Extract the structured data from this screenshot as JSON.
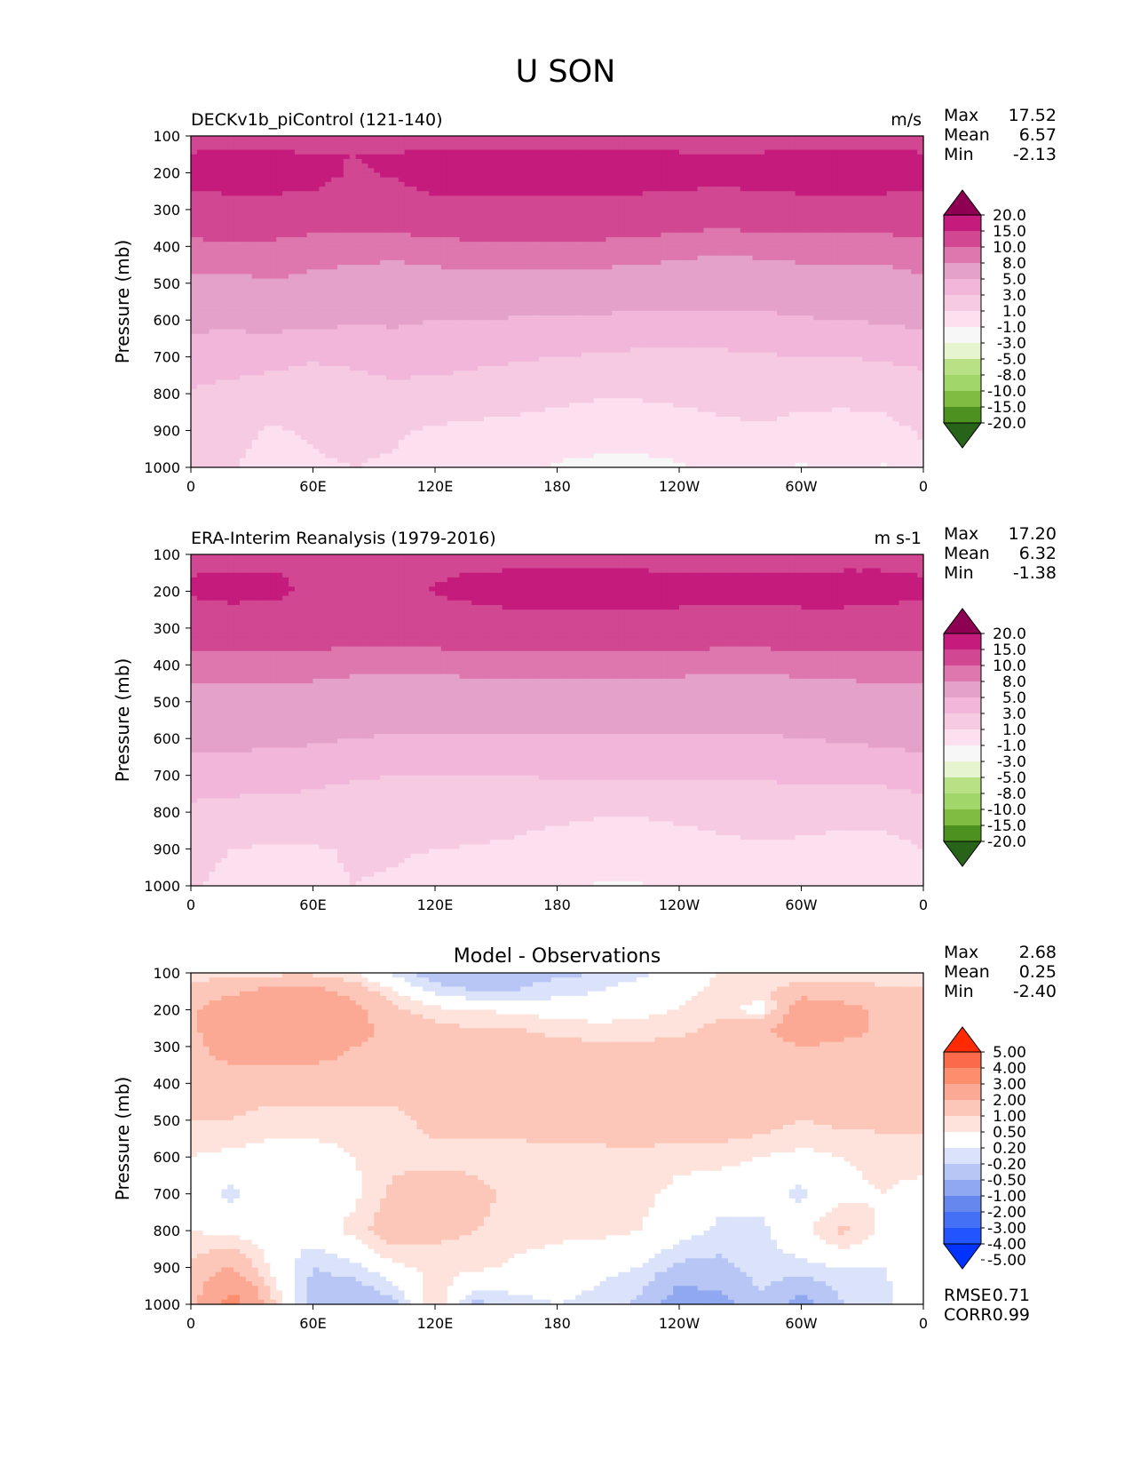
{
  "figure": {
    "title": "U SON"
  },
  "colors": {
    "full_field": [
      "#276419",
      "#4d9221",
      "#7fbc41",
      "#a1d76a",
      "#b8e186",
      "#e6f5d0",
      "#f7f7f7",
      "#fde0ef",
      "#f6cbe2",
      "#f1b6da",
      "#e4a1c9",
      "#de77ae",
      "#d14792",
      "#c51b7d",
      "#8e0152"
    ],
    "difference": [
      "#0033ff",
      "#2255ff",
      "#4470f5",
      "#6688ee",
      "#8fa8ef",
      "#b7c6f4",
      "#dbe3fb",
      "#ffffff",
      "#fee3dc",
      "#fcc7b8",
      "#fba994",
      "#fc8e6e",
      "#fb6a4a",
      "#ff2a00"
    ]
  },
  "chart_data": [
    {
      "type": "heatmap",
      "id": "model",
      "title": "DECKv1b_piControl (121-140)",
      "units": "m/s",
      "ylabel": "Pressure (mb)",
      "xlabel": "",
      "x_ticks": [
        "0",
        "60E",
        "120E",
        "180",
        "120W",
        "60W",
        "0"
      ],
      "y_ticks": [
        "100",
        "200",
        "300",
        "400",
        "500",
        "600",
        "700",
        "800",
        "900",
        "1000"
      ],
      "ylim": [
        100,
        1000
      ],
      "xlim": [
        0,
        360
      ],
      "stats": {
        "max_label": "Max",
        "max": "17.52",
        "mean_label": "Mean",
        "mean": "6.57",
        "min_label": "Min",
        "min": "-2.13"
      },
      "colorbar": {
        "levels": [
          "20.0",
          "15.0",
          "10.0",
          "8.0",
          "5.0",
          "3.0",
          "1.0",
          "-1.0",
          "-3.0",
          "-5.0",
          "-8.0",
          "-10.0",
          "-15.0",
          "-20.0"
        ],
        "extend": "both",
        "palette": "full_field"
      },
      "field": {
        "lon": [
          0,
          20,
          40,
          60,
          80,
          100,
          120,
          140,
          160,
          180,
          200,
          220,
          240,
          260,
          280,
          300,
          320,
          340,
          360
        ],
        "plev": [
          100,
          150,
          200,
          250,
          300,
          400,
          500,
          600,
          700,
          800,
          900,
          1000
        ],
        "u": [
          [
            11.0,
            10.5,
            10.0,
            9.5,
            10.0,
            10.5,
            11.0,
            12.0,
            12.0,
            12.0,
            12.0,
            12.0,
            11.5,
            11.0,
            11.0,
            11.0,
            10.5,
            10.5,
            11.0
          ],
          [
            15.5,
            16.0,
            16.0,
            15.5,
            15.0,
            15.5,
            16.0,
            16.5,
            16.5,
            16.0,
            16.0,
            16.0,
            15.5,
            15.0,
            15.5,
            16.0,
            16.0,
            16.0,
            15.5
          ],
          [
            16.5,
            17.0,
            17.0,
            16.5,
            14.5,
            15.5,
            17.0,
            17.5,
            17.5,
            17.0,
            17.0,
            17.0,
            16.5,
            16.5,
            17.0,
            17.0,
            17.0,
            17.0,
            16.5
          ],
          [
            15.0,
            15.5,
            15.5,
            15.0,
            13.5,
            14.0,
            15.5,
            16.0,
            16.0,
            15.5,
            15.5,
            15.5,
            15.0,
            14.5,
            15.0,
            15.5,
            15.5,
            15.5,
            15.0
          ],
          [
            12.0,
            12.5,
            12.5,
            12.0,
            12.0,
            12.0,
            12.5,
            13.0,
            13.0,
            12.5,
            12.5,
            12.0,
            12.0,
            11.5,
            12.0,
            12.0,
            12.0,
            12.0,
            12.0
          ],
          [
            9.5,
            9.5,
            9.5,
            9.0,
            9.0,
            8.8,
            9.2,
            9.5,
            9.5,
            9.5,
            9.5,
            9.2,
            9.0,
            8.5,
            8.8,
            9.0,
            9.0,
            9.0,
            9.5
          ],
          [
            7.5,
            7.5,
            7.8,
            7.5,
            7.0,
            6.8,
            7.0,
            7.2,
            7.2,
            7.0,
            7.0,
            6.8,
            6.5,
            6.2,
            6.5,
            6.8,
            7.0,
            7.0,
            7.5
          ],
          [
            5.5,
            5.5,
            5.8,
            5.5,
            5.3,
            5.2,
            5.0,
            5.0,
            4.8,
            4.8,
            4.6,
            4.5,
            4.5,
            4.5,
            4.5,
            4.8,
            5.0,
            5.2,
            5.5
          ],
          [
            4.0,
            3.8,
            3.5,
            3.2,
            3.5,
            4.2,
            3.8,
            3.5,
            3.2,
            3.0,
            2.8,
            2.6,
            2.5,
            2.6,
            2.8,
            3.0,
            3.0,
            3.2,
            3.5
          ],
          [
            2.8,
            2.5,
            2.2,
            2.0,
            2.0,
            2.2,
            2.2,
            2.0,
            1.8,
            1.5,
            1.2,
            1.2,
            1.4,
            1.6,
            1.8,
            1.6,
            1.5,
            1.6,
            2.0
          ],
          [
            1.8,
            1.5,
            0.8,
            1.2,
            1.4,
            1.2,
            0.8,
            0.6,
            0.4,
            0.2,
            0.0,
            0.0,
            0.2,
            0.6,
            0.8,
            0.4,
            0.3,
            0.5,
            1.2
          ],
          [
            1.0,
            1.2,
            0.2,
            0.8,
            1.0,
            0.8,
            -0.2,
            0.2,
            0.0,
            -1.2,
            -1.5,
            -1.6,
            -1.2,
            -0.2,
            0.2,
            -1.3,
            0.3,
            -1.2,
            0.5
          ]
        ]
      }
    },
    {
      "type": "heatmap",
      "id": "obs",
      "title": "ERA-Interim Reanalysis (1979-2016)",
      "units": "m s-1",
      "ylabel": "Pressure (mb)",
      "xlabel": "",
      "x_ticks": [
        "0",
        "60E",
        "120E",
        "180",
        "120W",
        "60W",
        "0"
      ],
      "y_ticks": [
        "100",
        "200",
        "300",
        "400",
        "500",
        "600",
        "700",
        "800",
        "900",
        "1000"
      ],
      "ylim": [
        100,
        1000
      ],
      "xlim": [
        0,
        360
      ],
      "stats": {
        "max_label": "Max",
        "max": "17.20",
        "mean_label": "Mean",
        "mean": "6.32",
        "min_label": "Min",
        "min": "-1.38"
      },
      "colorbar": {
        "levels": [
          "20.0",
          "15.0",
          "10.0",
          "8.0",
          "5.0",
          "3.0",
          "1.0",
          "-1.0",
          "-3.0",
          "-5.0",
          "-8.0",
          "-10.0",
          "-15.0",
          "-20.0"
        ],
        "extend": "both",
        "palette": "full_field"
      },
      "field": {
        "lon": [
          0,
          20,
          40,
          60,
          80,
          100,
          120,
          140,
          160,
          180,
          200,
          220,
          240,
          260,
          280,
          300,
          320,
          340,
          360
        ],
        "plev": [
          100,
          150,
          200,
          250,
          300,
          400,
          500,
          600,
          700,
          800,
          900,
          1000
        ],
        "u": [
          [
            12.0,
            11.5,
            11.5,
            11.0,
            11.0,
            11.0,
            11.5,
            12.0,
            12.5,
            12.0,
            12.0,
            12.0,
            11.5,
            11.5,
            11.5,
            11.5,
            11.5,
            11.5,
            12.0
          ],
          [
            14.8,
            15.5,
            15.2,
            14.0,
            13.5,
            13.8,
            14.5,
            15.2,
            15.5,
            15.5,
            15.5,
            15.5,
            15.2,
            15.0,
            15.2,
            15.4,
            15.5,
            15.5,
            14.8
          ],
          [
            15.5,
            16.5,
            16.0,
            14.2,
            13.8,
            14.2,
            15.2,
            16.2,
            16.5,
            16.6,
            16.6,
            16.6,
            16.3,
            16.0,
            16.2,
            16.4,
            16.5,
            16.4,
            15.8
          ],
          [
            14.0,
            14.2,
            14.0,
            13.5,
            13.2,
            13.2,
            13.8,
            14.5,
            15.0,
            15.2,
            15.3,
            15.2,
            14.8,
            14.5,
            14.6,
            14.8,
            14.8,
            14.5,
            14.0
          ],
          [
            12.0,
            12.0,
            12.0,
            11.8,
            11.5,
            11.5,
            11.8,
            12.0,
            12.2,
            12.2,
            12.0,
            12.0,
            12.0,
            11.8,
            11.8,
            12.0,
            12.0,
            12.0,
            12.0
          ],
          [
            9.0,
            9.0,
            9.0,
            8.8,
            8.5,
            8.5,
            8.5,
            8.8,
            8.8,
            8.8,
            8.8,
            8.8,
            8.8,
            8.5,
            8.5,
            8.8,
            8.8,
            9.0,
            9.0
          ],
          [
            7.2,
            7.2,
            7.2,
            7.0,
            6.8,
            6.6,
            6.5,
            6.5,
            6.5,
            6.5,
            6.5,
            6.5,
            6.4,
            6.2,
            6.3,
            6.5,
            6.8,
            7.0,
            7.2
          ],
          [
            5.6,
            5.6,
            5.5,
            5.3,
            5.0,
            4.8,
            4.8,
            4.8,
            4.8,
            4.8,
            4.8,
            4.8,
            4.8,
            4.8,
            4.8,
            5.0,
            5.2,
            5.4,
            5.6
          ],
          [
            4.0,
            3.8,
            3.8,
            3.5,
            3.2,
            3.0,
            3.0,
            3.0,
            3.0,
            3.2,
            3.2,
            3.2,
            3.2,
            3.2,
            3.2,
            3.4,
            3.4,
            3.6,
            4.0
          ],
          [
            2.6,
            2.4,
            2.3,
            2.2,
            2.0,
            1.8,
            1.8,
            1.8,
            1.6,
            1.4,
            1.2,
            1.2,
            1.4,
            1.6,
            1.8,
            1.8,
            1.6,
            1.6,
            2.0
          ],
          [
            1.5,
            1.0,
            0.8,
            0.9,
            1.1,
            1.1,
            1.0,
            0.9,
            0.7,
            0.3,
            0.0,
            -0.1,
            0.2,
            0.6,
            0.8,
            0.6,
            0.4,
            0.4,
            1.0
          ],
          [
            1.2,
            0.5,
            0.8,
            0.8,
            1.0,
            0.9,
            0.6,
            0.4,
            0.2,
            0.0,
            -1.2,
            -1.1,
            -0.2,
            0.4,
            0.6,
            0.4,
            0.5,
            0.3,
            0.8
          ]
        ]
      }
    },
    {
      "type": "heatmap",
      "id": "diff",
      "title": "Model - Observations",
      "units": "",
      "ylabel": "Pressure (mb)",
      "xlabel": "",
      "x_ticks": [
        "0",
        "60E",
        "120E",
        "180",
        "120W",
        "60W",
        "0"
      ],
      "y_ticks": [
        "100",
        "200",
        "300",
        "400",
        "500",
        "600",
        "700",
        "800",
        "900",
        "1000"
      ],
      "ylim": [
        100,
        1000
      ],
      "xlim": [
        0,
        360
      ],
      "stats": {
        "max_label": "Max",
        "max": "2.68",
        "mean_label": "Mean",
        "mean": "0.25",
        "min_label": "Min",
        "min": "-2.40"
      },
      "metrics": {
        "rmse_label": "RMSE",
        "rmse": "0.71",
        "corr_label": "CORR",
        "corr": "0.99"
      },
      "colorbar": {
        "levels": [
          "5.00",
          "4.00",
          "3.00",
          "2.00",
          "1.00",
          "0.50",
          "0.20",
          "-0.20",
          "-0.50",
          "-1.00",
          "-2.00",
          "-3.00",
          "-4.00",
          "-5.00"
        ],
        "extend": "both",
        "palette": "difference"
      },
      "field": {
        "lon": [
          0,
          20,
          40,
          60,
          80,
          100,
          120,
          140,
          160,
          180,
          200,
          220,
          240,
          260,
          280,
          300,
          320,
          340,
          360
        ],
        "plev": [
          100,
          150,
          200,
          250,
          300,
          400,
          500,
          600,
          700,
          800,
          900,
          1000
        ],
        "u": [
          [
            0.3,
            0.4,
            0.4,
            0.4,
            0.2,
            -0.3,
            -0.8,
            -0.9,
            -0.7,
            -0.6,
            -0.5,
            -0.3,
            0.0,
            0.2,
            0.3,
            0.2,
            0.3,
            0.3,
            0.3
          ],
          [
            0.6,
            0.9,
            1.2,
            1.2,
            0.8,
            0.2,
            -0.3,
            -0.5,
            -0.5,
            -0.3,
            -0.2,
            0.0,
            0.1,
            0.3,
            0.4,
            0.8,
            0.7,
            0.6,
            0.6
          ],
          [
            0.9,
            1.4,
            1.6,
            1.6,
            1.2,
            0.6,
            0.3,
            0.2,
            0.1,
            0.0,
            0.0,
            0.1,
            0.2,
            0.4,
            0.0,
            1.4,
            1.2,
            0.9,
            0.9
          ],
          [
            0.9,
            1.4,
            1.6,
            1.5,
            1.2,
            0.8,
            0.6,
            0.5,
            0.5,
            0.4,
            0.3,
            0.3,
            0.4,
            0.6,
            0.9,
            1.4,
            1.2,
            0.9,
            0.9
          ],
          [
            0.9,
            1.2,
            1.2,
            1.2,
            1.0,
            0.9,
            0.8,
            0.7,
            0.7,
            0.6,
            0.6,
            0.6,
            0.6,
            0.7,
            0.8,
            1.0,
            0.9,
            0.9,
            0.9
          ],
          [
            0.8,
            0.8,
            0.8,
            0.8,
            0.8,
            0.7,
            0.7,
            0.7,
            0.7,
            0.7,
            0.7,
            0.7,
            0.7,
            0.7,
            0.7,
            0.8,
            0.8,
            0.8,
            0.8
          ],
          [
            0.5,
            0.5,
            0.3,
            0.3,
            0.3,
            0.4,
            0.6,
            0.6,
            0.6,
            0.7,
            0.7,
            0.8,
            0.8,
            0.8,
            0.7,
            0.5,
            0.6,
            0.6,
            0.6
          ],
          [
            0.2,
            0.1,
            0.1,
            0.1,
            0.2,
            0.4,
            0.4,
            0.4,
            0.4,
            0.4,
            0.4,
            0.4,
            0.3,
            0.3,
            0.2,
            0.1,
            0.2,
            0.3,
            0.3
          ],
          [
            0.1,
            -0.3,
            0.0,
            0.1,
            0.1,
            0.6,
            0.7,
            0.6,
            0.4,
            0.4,
            0.4,
            0.3,
            0.1,
            0.0,
            0.0,
            -0.3,
            0.1,
            0.2,
            0.1
          ],
          [
            0.2,
            0.1,
            0.0,
            0.0,
            0.3,
            0.8,
            0.6,
            0.5,
            0.4,
            0.3,
            0.3,
            0.2,
            0.0,
            -0.3,
            -0.3,
            0.1,
            0.6,
            0.1,
            0.1
          ],
          [
            0.6,
            1.0,
            0.1,
            -0.5,
            -0.3,
            0.1,
            0.3,
            0.3,
            0.1,
            0.0,
            -0.1,
            -0.2,
            -0.6,
            -0.6,
            -0.3,
            -0.3,
            -0.2,
            -0.2,
            0.0
          ],
          [
            0.7,
            2.5,
            0.6,
            -0.8,
            -1.0,
            -0.6,
            0.5,
            -0.6,
            -0.3,
            -0.2,
            -0.3,
            -0.6,
            -1.4,
            -1.2,
            -0.6,
            -1.3,
            -0.5,
            -0.3,
            0.0
          ]
        ]
      }
    }
  ]
}
